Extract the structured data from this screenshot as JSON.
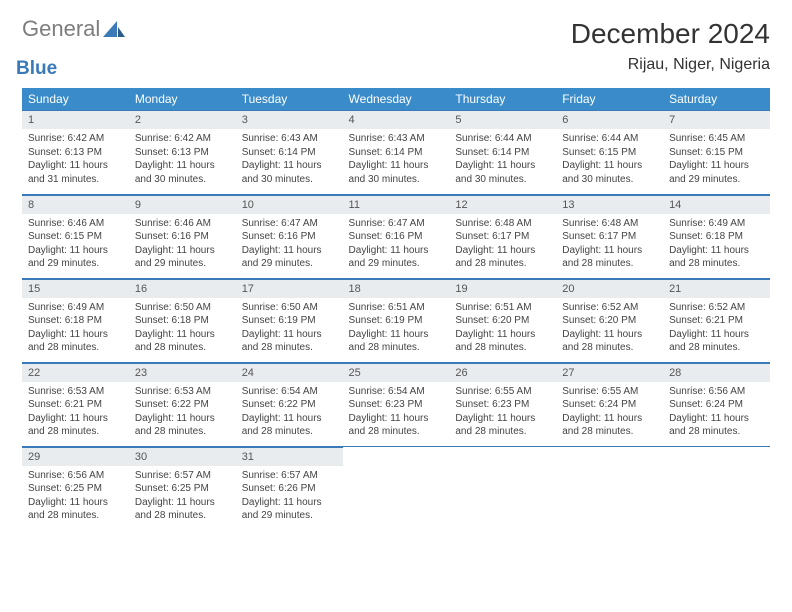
{
  "logo": {
    "text1": "General",
    "text2": "Blue"
  },
  "title": "December 2024",
  "location": "Rijau, Niger, Nigeria",
  "weekdays": [
    "Sunday",
    "Monday",
    "Tuesday",
    "Wednesday",
    "Thursday",
    "Friday",
    "Saturday"
  ],
  "colors": {
    "header_bg": "#3a8bc9",
    "header_text": "#ffffff",
    "border": "#3a7ab8",
    "daynum_bg": "#e9ecef",
    "logo_gray": "#7d7d7d",
    "logo_blue": "#3a7ab8"
  },
  "weeks": [
    [
      {
        "d": "1",
        "sr": "Sunrise: 6:42 AM",
        "ss": "Sunset: 6:13 PM",
        "dl": "Daylight: 11 hours and 31 minutes."
      },
      {
        "d": "2",
        "sr": "Sunrise: 6:42 AM",
        "ss": "Sunset: 6:13 PM",
        "dl": "Daylight: 11 hours and 30 minutes."
      },
      {
        "d": "3",
        "sr": "Sunrise: 6:43 AM",
        "ss": "Sunset: 6:14 PM",
        "dl": "Daylight: 11 hours and 30 minutes."
      },
      {
        "d": "4",
        "sr": "Sunrise: 6:43 AM",
        "ss": "Sunset: 6:14 PM",
        "dl": "Daylight: 11 hours and 30 minutes."
      },
      {
        "d": "5",
        "sr": "Sunrise: 6:44 AM",
        "ss": "Sunset: 6:14 PM",
        "dl": "Daylight: 11 hours and 30 minutes."
      },
      {
        "d": "6",
        "sr": "Sunrise: 6:44 AM",
        "ss": "Sunset: 6:15 PM",
        "dl": "Daylight: 11 hours and 30 minutes."
      },
      {
        "d": "7",
        "sr": "Sunrise: 6:45 AM",
        "ss": "Sunset: 6:15 PM",
        "dl": "Daylight: 11 hours and 29 minutes."
      }
    ],
    [
      {
        "d": "8",
        "sr": "Sunrise: 6:46 AM",
        "ss": "Sunset: 6:15 PM",
        "dl": "Daylight: 11 hours and 29 minutes."
      },
      {
        "d": "9",
        "sr": "Sunrise: 6:46 AM",
        "ss": "Sunset: 6:16 PM",
        "dl": "Daylight: 11 hours and 29 minutes."
      },
      {
        "d": "10",
        "sr": "Sunrise: 6:47 AM",
        "ss": "Sunset: 6:16 PM",
        "dl": "Daylight: 11 hours and 29 minutes."
      },
      {
        "d": "11",
        "sr": "Sunrise: 6:47 AM",
        "ss": "Sunset: 6:16 PM",
        "dl": "Daylight: 11 hours and 29 minutes."
      },
      {
        "d": "12",
        "sr": "Sunrise: 6:48 AM",
        "ss": "Sunset: 6:17 PM",
        "dl": "Daylight: 11 hours and 28 minutes."
      },
      {
        "d": "13",
        "sr": "Sunrise: 6:48 AM",
        "ss": "Sunset: 6:17 PM",
        "dl": "Daylight: 11 hours and 28 minutes."
      },
      {
        "d": "14",
        "sr": "Sunrise: 6:49 AM",
        "ss": "Sunset: 6:18 PM",
        "dl": "Daylight: 11 hours and 28 minutes."
      }
    ],
    [
      {
        "d": "15",
        "sr": "Sunrise: 6:49 AM",
        "ss": "Sunset: 6:18 PM",
        "dl": "Daylight: 11 hours and 28 minutes."
      },
      {
        "d": "16",
        "sr": "Sunrise: 6:50 AM",
        "ss": "Sunset: 6:18 PM",
        "dl": "Daylight: 11 hours and 28 minutes."
      },
      {
        "d": "17",
        "sr": "Sunrise: 6:50 AM",
        "ss": "Sunset: 6:19 PM",
        "dl": "Daylight: 11 hours and 28 minutes."
      },
      {
        "d": "18",
        "sr": "Sunrise: 6:51 AM",
        "ss": "Sunset: 6:19 PM",
        "dl": "Daylight: 11 hours and 28 minutes."
      },
      {
        "d": "19",
        "sr": "Sunrise: 6:51 AM",
        "ss": "Sunset: 6:20 PM",
        "dl": "Daylight: 11 hours and 28 minutes."
      },
      {
        "d": "20",
        "sr": "Sunrise: 6:52 AM",
        "ss": "Sunset: 6:20 PM",
        "dl": "Daylight: 11 hours and 28 minutes."
      },
      {
        "d": "21",
        "sr": "Sunrise: 6:52 AM",
        "ss": "Sunset: 6:21 PM",
        "dl": "Daylight: 11 hours and 28 minutes."
      }
    ],
    [
      {
        "d": "22",
        "sr": "Sunrise: 6:53 AM",
        "ss": "Sunset: 6:21 PM",
        "dl": "Daylight: 11 hours and 28 minutes."
      },
      {
        "d": "23",
        "sr": "Sunrise: 6:53 AM",
        "ss": "Sunset: 6:22 PM",
        "dl": "Daylight: 11 hours and 28 minutes."
      },
      {
        "d": "24",
        "sr": "Sunrise: 6:54 AM",
        "ss": "Sunset: 6:22 PM",
        "dl": "Daylight: 11 hours and 28 minutes."
      },
      {
        "d": "25",
        "sr": "Sunrise: 6:54 AM",
        "ss": "Sunset: 6:23 PM",
        "dl": "Daylight: 11 hours and 28 minutes."
      },
      {
        "d": "26",
        "sr": "Sunrise: 6:55 AM",
        "ss": "Sunset: 6:23 PM",
        "dl": "Daylight: 11 hours and 28 minutes."
      },
      {
        "d": "27",
        "sr": "Sunrise: 6:55 AM",
        "ss": "Sunset: 6:24 PM",
        "dl": "Daylight: 11 hours and 28 minutes."
      },
      {
        "d": "28",
        "sr": "Sunrise: 6:56 AM",
        "ss": "Sunset: 6:24 PM",
        "dl": "Daylight: 11 hours and 28 minutes."
      }
    ],
    [
      {
        "d": "29",
        "sr": "Sunrise: 6:56 AM",
        "ss": "Sunset: 6:25 PM",
        "dl": "Daylight: 11 hours and 28 minutes."
      },
      {
        "d": "30",
        "sr": "Sunrise: 6:57 AM",
        "ss": "Sunset: 6:25 PM",
        "dl": "Daylight: 11 hours and 28 minutes."
      },
      {
        "d": "31",
        "sr": "Sunrise: 6:57 AM",
        "ss": "Sunset: 6:26 PM",
        "dl": "Daylight: 11 hours and 29 minutes."
      },
      null,
      null,
      null,
      null
    ]
  ]
}
